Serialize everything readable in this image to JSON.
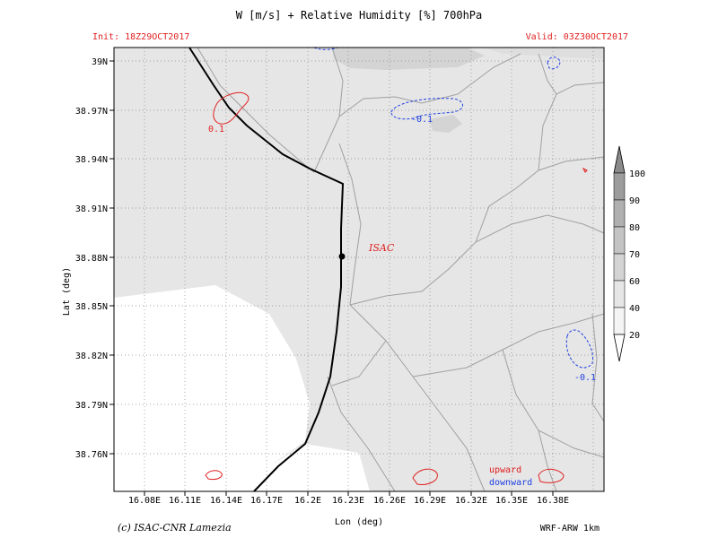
{
  "header": {
    "title": "W [m/s] + Relative Humidity [%] 700hPa",
    "init": "Init: 18Z29OCT2017",
    "valid": "Valid: 03Z30OCT2017"
  },
  "axes": {
    "xlabel": "Lon (deg)",
    "ylabel": "Lat (deg)",
    "xticks": [
      "16.08E",
      "16.11E",
      "16.14E",
      "16.17E",
      "16.2E",
      "16.23E",
      "16.26E",
      "16.29E",
      "16.32E",
      "16.35E",
      "16.38E"
    ],
    "yticks": [
      "39N",
      "38.97N",
      "38.94N",
      "38.91N",
      "38.88N",
      "38.85N",
      "38.82N",
      "38.79N",
      "38.76N"
    ]
  },
  "station": {
    "label": "ISAC"
  },
  "contour_labels": {
    "red": "0.1",
    "blue_top": "-0.1",
    "blue_right": "-0.1"
  },
  "legend": {
    "upward": "upward",
    "downward": "downward"
  },
  "colorbar": {
    "ticks": [
      "100",
      "90",
      "80",
      "70",
      "60",
      "40",
      "20"
    ]
  },
  "footer": {
    "left": "(c) ISAC-CNR Lamezia",
    "right": "WRF-ARW 1km"
  },
  "colors": {
    "up": "#e02020",
    "down": "#2040e0",
    "land": "#e6e6e6",
    "sea": "#ffffff",
    "coast": "#000000",
    "boundary": "#a0a0a0"
  }
}
